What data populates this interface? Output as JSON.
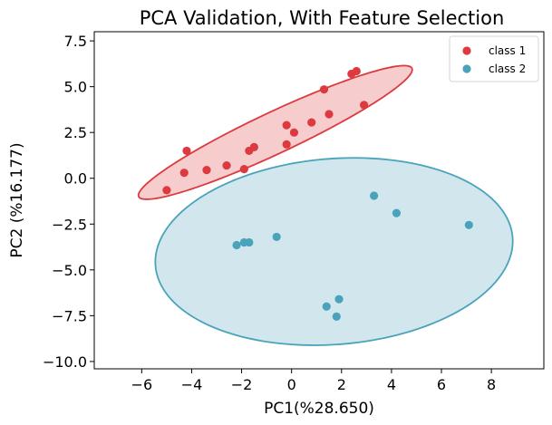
{
  "chart_data": {
    "type": "scatter",
    "title": "PCA Validation, With Feature Selection",
    "xlabel": "PC1(%28.650)",
    "ylabel": "PC2 (%16.177)",
    "xlim": [
      -7.9,
      10.1
    ],
    "ylim": [
      -10.4,
      8.0
    ],
    "xticks": [
      -6,
      -4,
      -2,
      0,
      2,
      4,
      6,
      8
    ],
    "xtick_labels": [
      "−6",
      "−4",
      "−2",
      "0",
      "2",
      "4",
      "6",
      "8"
    ],
    "yticks": [
      7.5,
      5.0,
      2.5,
      0.0,
      -2.5,
      -5.0,
      -7.5,
      -10.0
    ],
    "ytick_labels": [
      "7.5",
      "5.0",
      "2.5",
      "0.0",
      "−2.5",
      "−5.0",
      "−7.5",
      "−10.0"
    ],
    "grid": false,
    "legend_position": "top-right",
    "series": [
      {
        "name": "class 1",
        "color": "#dc3a3f",
        "fill": "#f4c3c4",
        "x": [
          -5.0,
          -4.2,
          -4.3,
          -3.4,
          -2.6,
          -1.7,
          -1.5,
          -1.9,
          -0.2,
          -0.2,
          0.1,
          0.8,
          1.3,
          1.5,
          2.4,
          2.6,
          2.9
        ],
        "y": [
          -0.65,
          1.5,
          0.3,
          0.45,
          0.7,
          1.5,
          1.7,
          0.5,
          2.9,
          1.85,
          2.5,
          3.05,
          4.85,
          3.5,
          5.7,
          5.85,
          4.0
        ],
        "ellipse": {
          "center": [
            -0.65,
            2.5
          ],
          "semi_major": 6.5,
          "semi_minor": 1.05,
          "angle_deg": 33
        }
      },
      {
        "name": "class 2",
        "color": "#4aa3ba",
        "fill": "#cae3ea",
        "x": [
          -2.2,
          -1.9,
          -1.7,
          -0.6,
          3.3,
          4.2,
          7.1,
          1.9,
          1.4,
          1.8
        ],
        "y": [
          -3.65,
          -3.5,
          -3.5,
          -3.2,
          -0.95,
          -1.9,
          -2.55,
          -6.6,
          -7.0,
          -7.55
        ],
        "ellipse": {
          "center": [
            1.7,
            -4.0
          ],
          "semi_major": 7.2,
          "semi_minor": 5.05,
          "angle_deg": 9
        }
      }
    ]
  }
}
